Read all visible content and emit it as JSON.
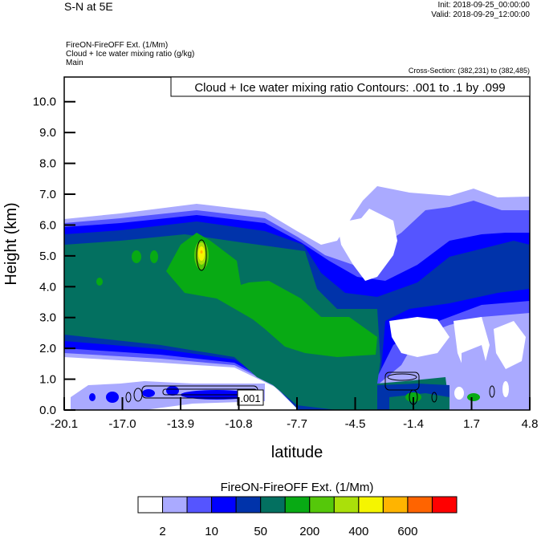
{
  "header": {
    "title": "S-N at 5E",
    "init": "Init: 2018-09-25_00:00:00",
    "valid": "Valid: 2018-09-29_12:00:00",
    "field1": "FireON-FireOFF Ext.   (1/Mm)",
    "field2": "Cloud + Ice water mixing ratio   (g/kg)",
    "field3": "Main",
    "cross_section": "Cross-Section: (382,231) to (382,485)"
  },
  "chart_data": {
    "type": "heatmap",
    "title": "Cloud + Ice water mixing ratio Contours: .001 to .1 by .099",
    "xlabel": "latitude",
    "ylabel": "Height (km)",
    "xlim": [
      -20.1,
      4.8
    ],
    "ylim": [
      0,
      10.8
    ],
    "xticks": [
      "-20.1",
      "-17.0",
      "-13.9",
      "-10.8",
      "-7.7",
      "-4.5",
      "-1.4",
      "1.7",
      "4.8"
    ],
    "yticks": [
      "0.0",
      "1.0",
      "2.0",
      "3.0",
      "4.0",
      "5.0",
      "6.0",
      "7.0",
      "8.0",
      "9.0",
      "10.0"
    ],
    "contour_label": ".001",
    "colorbar": {
      "title": "FireON-FireOFF Ext.  (1/Mm)",
      "colors": [
        "#ffffff",
        "#aaaaff",
        "#5555ff",
        "#0000ff",
        "#0033aa",
        "#037060",
        "#08aa14",
        "#55c80a",
        "#aae00a",
        "#f5f500",
        "#ffb400",
        "#ff6400",
        "#ff0000"
      ],
      "labels": [
        "2",
        "10",
        "50",
        "200",
        "400",
        "600"
      ]
    }
  }
}
